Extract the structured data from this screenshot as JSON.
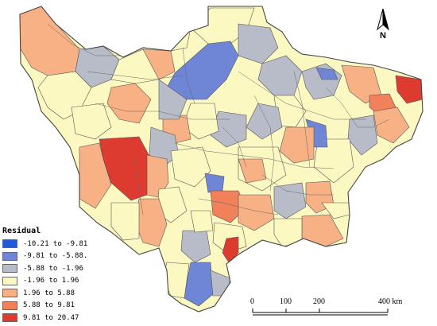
{
  "legend": {
    "title": "Residual",
    "items": [
      {
        "label": "-10.21 to -9.81",
        "color": "#1f5bd6"
      },
      {
        "label": "-9.81 to -5.88.",
        "color": "#6f86d6"
      },
      {
        "label": "-5.88 to -1.96",
        "color": "#b8bcc9"
      },
      {
        "label": "-1.96 to 1.96",
        "color": "#fbf8c2"
      },
      {
        "label": "1.96 to 5.88",
        "color": "#f7b184"
      },
      {
        "label": "5.88 to 9.81",
        "color": "#f0815a"
      },
      {
        "label": "9.81 to 20.47",
        "color": "#de3b30"
      }
    ]
  },
  "north_arrow": {
    "letter": "N",
    "icon": "north-arrow-icon"
  },
  "scale_bar": {
    "labels": [
      "0",
      "100",
      "200",
      "400 km"
    ]
  }
}
